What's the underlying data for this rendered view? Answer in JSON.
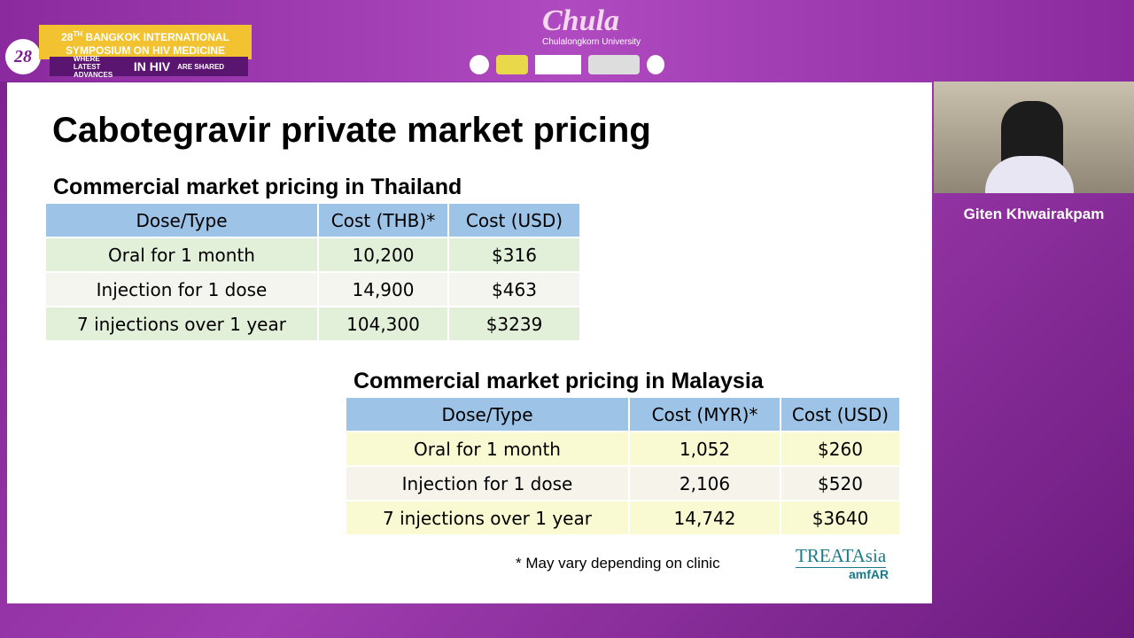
{
  "header": {
    "edition": "28",
    "edition_suffix": "TH",
    "banner_line1": "BANGKOK INTERNATIONAL",
    "banner_line2": "SYMPOSIUM ON  HIV MEDICINE",
    "tagline_left": "WHERE LATEST ADVANCES",
    "tagline_big": "IN HIV",
    "tagline_right": "ARE SHARED",
    "university": "Chula",
    "university_sub": "Chulalongkorn University"
  },
  "slide": {
    "title": "Cabotegravir private market pricing",
    "tables": [
      {
        "caption": "Commercial market pricing in Thailand",
        "columns": [
          "Dose/Type",
          "Cost (THB)*",
          "Cost (USD)"
        ],
        "rows": [
          [
            "Oral for 1 month",
            "10,200",
            "$316"
          ],
          [
            "Injection for 1 dose",
            "14,900",
            "$463"
          ],
          [
            "7 injections over 1 year",
            "104,300",
            "$3239"
          ]
        ]
      },
      {
        "caption": "Commercial market pricing in Malaysia",
        "columns": [
          "Dose/Type",
          "Cost (MYR)*",
          "Cost (USD)"
        ],
        "rows": [
          [
            "Oral for 1 month",
            "1,052",
            "$260"
          ],
          [
            "Injection for 1 dose",
            "2,106",
            "$520"
          ],
          [
            "7 injections over 1 year",
            "14,742",
            "$3640"
          ]
        ]
      }
    ],
    "footnote": "* May vary depending on clinic",
    "logo": "TREATAsia",
    "logo_sub": "amfAR"
  },
  "speaker": {
    "name": "Giten Khwairakpam"
  }
}
